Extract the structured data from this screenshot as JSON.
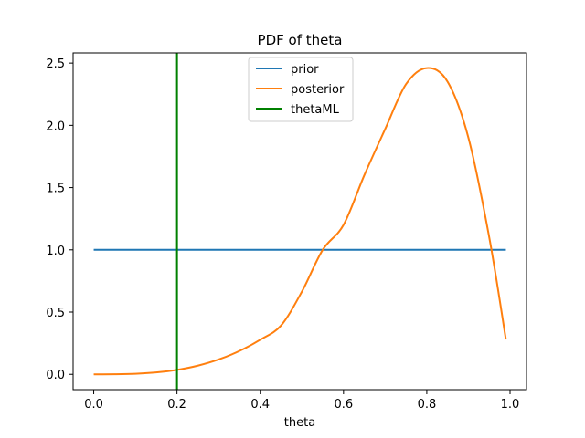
{
  "chart_data": {
    "type": "line",
    "title": "PDF of theta",
    "xlabel": "theta",
    "ylabel": "",
    "xlim": [
      -0.0495,
      1.0395
    ],
    "ylim": [
      -0.1229,
      2.5816
    ],
    "xticks": [
      0.0,
      0.2,
      0.4,
      0.6,
      0.8,
      1.0
    ],
    "xtick_labels": [
      "0.0",
      "0.2",
      "0.4",
      "0.6",
      "0.8",
      "1.0"
    ],
    "yticks": [
      0.0,
      0.5,
      1.0,
      1.5,
      2.0,
      2.5
    ],
    "ytick_labels": [
      "0.0",
      "0.5",
      "1.0",
      "1.5",
      "2.0",
      "2.5"
    ],
    "grid": false,
    "legend": {
      "position": "upper center"
    },
    "series": [
      {
        "name": "prior",
        "color": "#1f77b4",
        "x": [
          0.0,
          0.99
        ],
        "y": [
          1.0,
          1.0
        ]
      },
      {
        "name": "posterior",
        "color": "#ff7f0e",
        "x": [
          0.0,
          0.05,
          0.1,
          0.15,
          0.2,
          0.25,
          0.3,
          0.35,
          0.4,
          0.45,
          0.5,
          0.55,
          0.6,
          0.65,
          0.7,
          0.75,
          0.8,
          0.85,
          0.9,
          0.95,
          0.99
        ],
        "y": [
          0.0,
          0.0006,
          0.0045,
          0.0152,
          0.0358,
          0.0694,
          0.1191,
          0.1876,
          0.2779,
          0.3926,
          0.6641,
          1.0,
          1.2,
          1.6,
          1.97,
          2.33,
          2.46,
          2.35,
          1.9,
          1.1,
          0.28
        ]
      },
      {
        "name": "thetaML",
        "color": "#008000",
        "x": [
          0.2,
          0.2
        ],
        "y": [
          -0.1229,
          2.5816
        ]
      }
    ]
  }
}
